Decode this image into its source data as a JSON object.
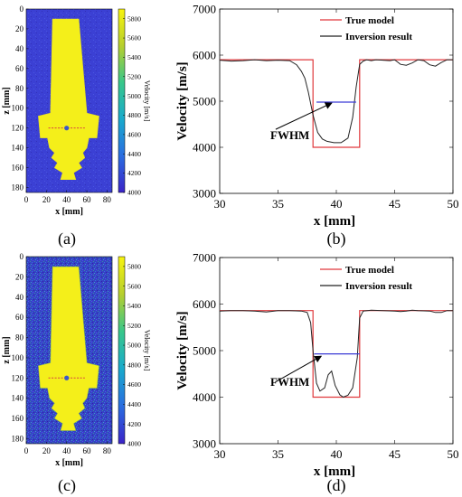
{
  "chart_data": [
    {
      "panel": "(a)",
      "type": "heatmap",
      "xlabel": "x [mm]",
      "ylabel": "z [mm]",
      "x_ticks": [
        "0",
        "20",
        "40",
        "60",
        "80"
      ],
      "y_ticks": [
        "0",
        "20",
        "40",
        "60",
        "80",
        "100",
        "120",
        "140",
        "160",
        "180"
      ],
      "xlim": [
        0,
        85
      ],
      "ylim": [
        0,
        185
      ],
      "colorbar": {
        "label": "Velocity [m/s]",
        "ticks": [
          "5800",
          "5600",
          "5400",
          "5200",
          "5000",
          "4800",
          "4600",
          "4400",
          "4200",
          "4000"
        ],
        "range": [
          4000,
          5900
        ]
      },
      "marker": {
        "x": 40,
        "z": 120
      },
      "noise": "low"
    },
    {
      "panel": "(b)",
      "type": "line",
      "xlabel": "x [mm]",
      "ylabel": "Velocity [m/s]",
      "xlim": [
        30,
        50
      ],
      "ylim": [
        3000,
        7000
      ],
      "x_ticks": [
        "30",
        "35",
        "40",
        "45",
        "50"
      ],
      "y_ticks": [
        "3000",
        "4000",
        "5000",
        "6000",
        "7000"
      ],
      "legend": [
        "True model",
        "Inversion result"
      ],
      "annotation": "FWHM",
      "series": [
        {
          "name": "True model",
          "color": "#e0383c",
          "x": [
            30,
            38,
            38,
            42,
            42,
            50
          ],
          "y": [
            5900,
            5900,
            4000,
            4000,
            5900,
            5900
          ]
        },
        {
          "name": "Inversion result",
          "color": "#222222",
          "x": [
            30,
            31,
            32,
            33,
            34,
            35,
            36,
            36.6,
            37,
            37.3,
            37.6,
            38,
            38.4,
            38.8,
            39.2,
            39.8,
            40.4,
            41,
            41.4,
            41.7,
            42,
            42.3,
            42.6,
            43,
            43.4,
            44,
            44.6,
            45,
            45.5,
            46,
            46.5,
            47,
            47.5,
            48,
            48.5,
            49,
            49.5,
            50
          ],
          "y": [
            5890,
            5870,
            5880,
            5900,
            5880,
            5890,
            5880,
            5790,
            5650,
            5500,
            5200,
            4700,
            4320,
            4180,
            4130,
            4100,
            4100,
            4200,
            4650,
            5300,
            5800,
            5870,
            5900,
            5880,
            5900,
            5890,
            5880,
            5900,
            5800,
            5780,
            5830,
            5900,
            5880,
            5790,
            5760,
            5840,
            5900,
            5900
          ]
        },
        {
          "name": "FWHM",
          "color": "#3a3ad6",
          "x": [
            38.3,
            41.7
          ],
          "y": [
            4980,
            4980
          ]
        }
      ],
      "fwhm_arrow": {
        "from": [
          34.8,
          4390
        ],
        "to": [
          39.6,
          4960
        ]
      }
    },
    {
      "panel": "(c)",
      "type": "heatmap",
      "xlabel": "x [mm]",
      "ylabel": "z [mm]",
      "x_ticks": [
        "0",
        "20",
        "40",
        "60",
        "80"
      ],
      "y_ticks": [
        "0",
        "20",
        "40",
        "60",
        "80",
        "100",
        "120",
        "140",
        "160",
        "180"
      ],
      "xlim": [
        0,
        85
      ],
      "ylim": [
        0,
        185
      ],
      "colorbar": {
        "label": "Velocity [m/s]",
        "ticks": [
          "5800",
          "5600",
          "5400",
          "5200",
          "5000",
          "4800",
          "4600",
          "4400",
          "4200",
          "4000"
        ],
        "range": [
          4000,
          5900
        ]
      },
      "marker": {
        "x": 40,
        "z": 120
      },
      "noise": "high"
    },
    {
      "panel": "(d)",
      "type": "line",
      "xlabel": "x [mm]",
      "ylabel": "Velocity [m/s]",
      "xlim": [
        30,
        50
      ],
      "ylim": [
        3000,
        7000
      ],
      "x_ticks": [
        "30",
        "35",
        "40",
        "45",
        "50"
      ],
      "y_ticks": [
        "3000",
        "4000",
        "5000",
        "6000",
        "7000"
      ],
      "legend": [
        "True model",
        "Inversion result"
      ],
      "annotation": "FWHM",
      "series": [
        {
          "name": "True model",
          "color": "#e0383c",
          "x": [
            30,
            38,
            38,
            42,
            42,
            50
          ],
          "y": [
            5860,
            5860,
            4000,
            4000,
            5860,
            5860
          ]
        },
        {
          "name": "Inversion result",
          "color": "#222222",
          "x": [
            30,
            31,
            32,
            33,
            34,
            35,
            36,
            37,
            37.5,
            37.8,
            38,
            38.3,
            38.6,
            39,
            39.3,
            39.6,
            39.9,
            40.3,
            40.6,
            41,
            41.4,
            41.8,
            42,
            42.3,
            43,
            44,
            45,
            45.5,
            46,
            46.5,
            47,
            48,
            48.5,
            49,
            49.5,
            50
          ],
          "y": [
            5850,
            5860,
            5860,
            5850,
            5830,
            5860,
            5860,
            5850,
            5820,
            5600,
            5000,
            4300,
            4130,
            4200,
            4480,
            4560,
            4250,
            4050,
            4000,
            4040,
            4200,
            4850,
            5700,
            5850,
            5870,
            5860,
            5850,
            5840,
            5850,
            5870,
            5860,
            5850,
            5820,
            5820,
            5860,
            5860
          ]
        },
        {
          "name": "FWHM",
          "color": "#3a3ad6",
          "x": [
            38.1,
            42.0
          ],
          "y": [
            4930,
            4930
          ]
        }
      ],
      "fwhm_arrow": {
        "from": [
          34.8,
          4330
        ],
        "to": [
          38.7,
          4880
        ]
      }
    }
  ]
}
